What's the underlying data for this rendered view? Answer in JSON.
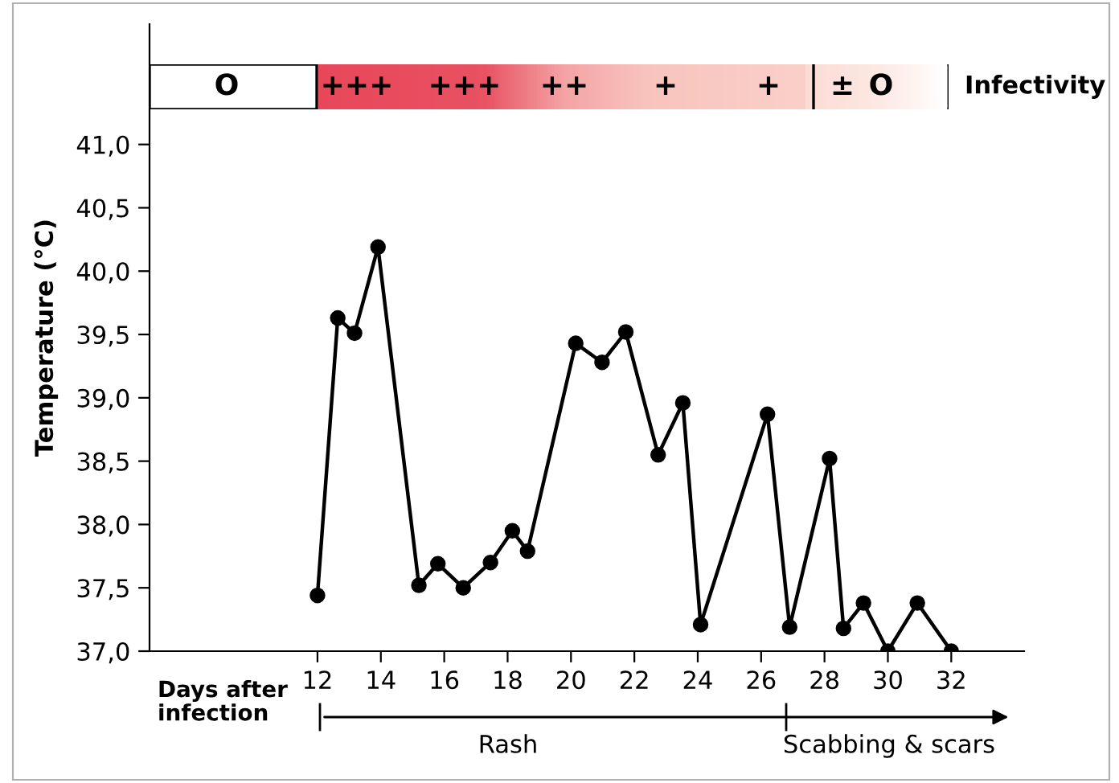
{
  "chart_data": {
    "type": "line",
    "xlabel": "Days after infection",
    "ylabel": "Temperature (°C)",
    "x": [
      12.0,
      12.64,
      13.17,
      13.91,
      15.2,
      15.8,
      16.6,
      17.46,
      18.15,
      18.63,
      20.15,
      20.98,
      21.73,
      22.75,
      23.53,
      24.09,
      26.2,
      26.9,
      28.16,
      28.6,
      29.23,
      30.0,
      30.93,
      32.0
    ],
    "series": [
      {
        "color": "#000000",
        "values": [
          37.44,
          39.63,
          39.51,
          40.19,
          37.52,
          37.69,
          37.5,
          37.7,
          37.95,
          37.79,
          39.43,
          39.28,
          39.52,
          38.55,
          38.96,
          37.21,
          38.87,
          37.19,
          38.52,
          37.18,
          37.38,
          37.0,
          37.38,
          37.0
        ]
      }
    ],
    "xlim": [
      6.7,
      34.3
    ],
    "xticks": [
      12,
      14,
      16,
      18,
      20,
      22,
      24,
      26,
      28,
      30,
      32
    ],
    "ylim": [
      37.0,
      41.95
    ],
    "yticks": [
      {
        "value": 37.0,
        "label": "37,0"
      },
      {
        "value": 37.5,
        "label": "37,5"
      },
      {
        "value": 38.0,
        "label": "38,0"
      },
      {
        "value": 38.5,
        "label": "38,5"
      },
      {
        "value": 39.0,
        "label": "39,0"
      },
      {
        "value": 39.5,
        "label": "39,5"
      },
      {
        "value": 40.0,
        "label": "40,0"
      },
      {
        "value": 40.5,
        "label": "40,5"
      },
      {
        "value": 41.0,
        "label": "41,0"
      }
    ],
    "marker": "circle",
    "line_style": "solid",
    "grid": false,
    "annotations": [
      "O",
      "+++",
      "+++",
      "++",
      "+",
      "+",
      "±",
      "O",
      "Infectivity",
      "Rash",
      "Scabbing & scars"
    ]
  }
}
